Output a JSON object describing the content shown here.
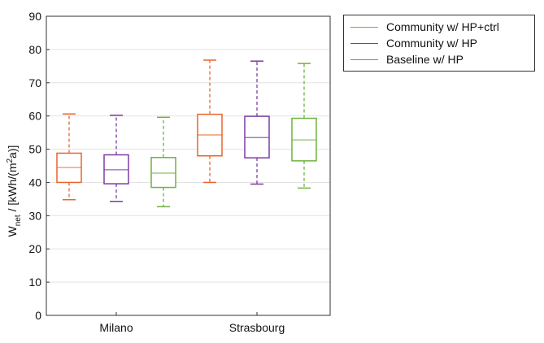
{
  "chart_data": {
    "type": "box",
    "title": "",
    "xlabel": "",
    "ylabel_main": "W",
    "ylabel_sub": "net",
    "ylabel_rest_1": " / [kWh/(m",
    "ylabel_sup": "2",
    "ylabel_rest_2": "a)]",
    "ylim": [
      0,
      90
    ],
    "yticks": [
      "0",
      "10",
      "20",
      "30",
      "40",
      "50",
      "60",
      "70",
      "80",
      "90"
    ],
    "categories": [
      "Milano",
      "Strasbourg"
    ],
    "series": [
      {
        "name": "Baseline w/ HP",
        "color": "#E8652B",
        "boxes": [
          {
            "min": 34.8,
            "q1": 40.0,
            "median": 44.5,
            "q3": 48.8,
            "max": 60.6
          },
          {
            "min": 40.0,
            "q1": 48.0,
            "median": 54.3,
            "q3": 60.5,
            "max": 76.8
          }
        ]
      },
      {
        "name": "Community w/ HP",
        "color": "#7E3BA3",
        "boxes": [
          {
            "min": 34.3,
            "q1": 39.6,
            "median": 43.8,
            "q3": 48.3,
            "max": 60.2
          },
          {
            "min": 39.5,
            "q1": 47.4,
            "median": 53.5,
            "q3": 59.9,
            "max": 76.5
          }
        ]
      },
      {
        "name": "Community w/ HP+ctrl",
        "color": "#6DB33F",
        "boxes": [
          {
            "min": 32.7,
            "q1": 38.5,
            "median": 42.8,
            "q3": 47.5,
            "max": 59.6
          },
          {
            "min": 38.3,
            "q1": 46.5,
            "median": 52.8,
            "q3": 59.3,
            "max": 75.8
          }
        ]
      }
    ],
    "legend": [
      {
        "label": "Community w/ HP+ctrl",
        "color": "#6DB33F"
      },
      {
        "label": "Community w/ HP",
        "color": "#7E3BA3"
      },
      {
        "label": "Baseline w/ HP",
        "color": "#E8652B"
      }
    ]
  }
}
